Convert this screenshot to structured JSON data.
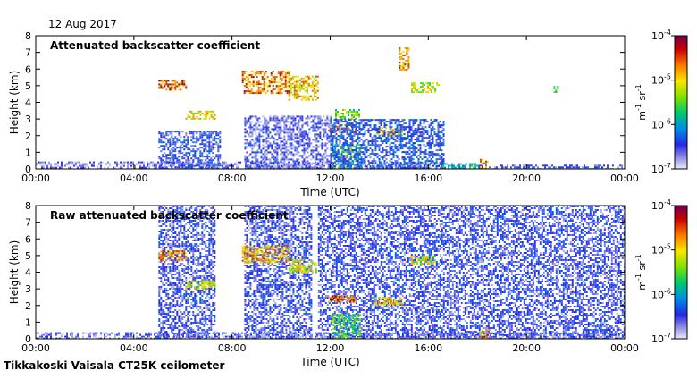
{
  "date": "12 Aug 2017",
  "footer": "Tikkakoski Vaisala CT25K ceilometer",
  "chart_data": [
    {
      "type": "heatmap",
      "title": "Attenuated backscatter coefficient",
      "xlabel": "Time (UTC)",
      "ylabel": "Height (km)",
      "xlim": [
        0,
        24
      ],
      "ylim": [
        0,
        8
      ],
      "x_ticks": [
        "00:00",
        "04:00",
        "08:00",
        "12:00",
        "16:00",
        "20:00",
        "00:00"
      ],
      "y_ticks": [
        "0",
        "1",
        "2",
        "3",
        "4",
        "5",
        "6",
        "7",
        "8"
      ],
      "colorbar": {
        "scale": "log",
        "unit_label": "m-1 sr-1",
        "unit_base_1": "m",
        "unit_exp_1": "-1",
        "unit_base_2": "sr",
        "unit_exp_2": "-1",
        "range": [
          1e-07,
          0.0001
        ],
        "tick_bases": [
          "10",
          "10",
          "10",
          "10"
        ],
        "tick_exps": [
          "-4",
          "-5",
          "-6",
          "-7"
        ],
        "tick_values": [
          0.0001,
          1e-05,
          1e-06,
          1e-07
        ]
      },
      "layers": [
        {
          "name": "surface-layer",
          "start_h": 0.0,
          "end_h": 16.6,
          "bottom_km": 0.0,
          "top_km": 0.45,
          "level": 0.15
        },
        {
          "name": "evening-surface-layer",
          "start_h": 18.1,
          "end_h": 24.0,
          "bottom_km": 0.0,
          "top_km": 0.25,
          "level": 0.22
        },
        {
          "name": "cloud-0500",
          "start_h": 5.0,
          "end_h": 6.1,
          "bottom_km": 4.75,
          "top_km": 5.35,
          "level": 0.88
        },
        {
          "name": "cloud-0600",
          "start_h": 6.1,
          "end_h": 7.3,
          "bottom_km": 3.0,
          "top_km": 3.5,
          "level": 0.72
        },
        {
          "name": "cloud-0830",
          "start_h": 8.4,
          "end_h": 10.3,
          "bottom_km": 4.6,
          "top_km": 5.9,
          "level": 0.85
        },
        {
          "name": "cloud-1030",
          "start_h": 10.3,
          "end_h": 11.5,
          "bottom_km": 4.2,
          "top_km": 5.6,
          "level": 0.78
        },
        {
          "name": "cloud-1200-low",
          "start_h": 11.9,
          "end_h": 13.0,
          "bottom_km": 2.2,
          "top_km": 2.6,
          "level": 0.9
        },
        {
          "name": "cloud-1300-mid",
          "start_h": 12.2,
          "end_h": 13.2,
          "bottom_km": 3.0,
          "top_km": 3.6,
          "level": 0.6
        },
        {
          "name": "cloud-1400-low",
          "start_h": 13.8,
          "end_h": 14.9,
          "bottom_km": 2.0,
          "top_km": 2.5,
          "level": 0.75
        },
        {
          "name": "cloud-1500-high",
          "start_h": 14.8,
          "end_h": 15.2,
          "bottom_km": 6.0,
          "top_km": 7.3,
          "level": 0.82
        },
        {
          "name": "cloud-1530",
          "start_h": 15.3,
          "end_h": 16.4,
          "bottom_km": 4.6,
          "top_km": 5.2,
          "level": 0.7
        },
        {
          "name": "cloud-2100",
          "start_h": 21.1,
          "end_h": 21.3,
          "bottom_km": 4.6,
          "top_km": 5.1,
          "level": 0.55
        },
        {
          "name": "rain-1230",
          "start_h": 12.1,
          "end_h": 13.2,
          "bottom_km": 0.0,
          "top_km": 1.5,
          "level": 0.55
        },
        {
          "name": "rain-1800",
          "start_h": 18.1,
          "end_h": 18.4,
          "bottom_km": 0.0,
          "top_km": 0.6,
          "level": 0.85
        },
        {
          "name": "drizzle-1630",
          "start_h": 16.5,
          "end_h": 18.1,
          "bottom_km": 0.0,
          "top_km": 0.35,
          "level": 0.45
        },
        {
          "name": "residual-0500",
          "start_h": 5.0,
          "end_h": 7.5,
          "bottom_km": 0.0,
          "top_km": 2.3,
          "level": 0.25
        },
        {
          "name": "residual-1100",
          "start_h": 8.5,
          "end_h": 12.0,
          "bottom_km": 0.0,
          "top_km": 3.2,
          "level": 0.2
        },
        {
          "name": "residual-1300",
          "start_h": 12.0,
          "end_h": 16.6,
          "bottom_km": 0.0,
          "top_km": 3.0,
          "level": 0.28
        }
      ]
    },
    {
      "type": "heatmap",
      "title": "Raw attenuated backscatter coefficient",
      "xlabel": "Time (UTC)",
      "ylabel": "Height (km)",
      "xlim": [
        0,
        24
      ],
      "ylim": [
        0,
        8
      ],
      "x_ticks": [
        "00:00",
        "04:00",
        "08:00",
        "12:00",
        "16:00",
        "20:00",
        "00:00"
      ],
      "y_ticks": [
        "0",
        "1",
        "2",
        "3",
        "4",
        "5",
        "6",
        "7",
        "8"
      ],
      "colorbar": {
        "scale": "log",
        "unit_label": "m-1 sr-1",
        "unit_base_1": "m",
        "unit_exp_1": "-1",
        "unit_base_2": "sr",
        "unit_exp_2": "-1",
        "range": [
          1e-07,
          0.0001
        ],
        "tick_bases": [
          "10",
          "10",
          "10",
          "10"
        ],
        "tick_exps": [
          "-4",
          "-5",
          "-6",
          "-7"
        ],
        "tick_values": [
          0.0001,
          1e-05,
          1e-06,
          1e-07
        ]
      },
      "layers": [
        {
          "name": "noise-field-0500",
          "start_h": 5.0,
          "end_h": 7.3,
          "bottom_km": 0.0,
          "top_km": 8.0,
          "level": 0.22
        },
        {
          "name": "noise-field-0800",
          "start_h": 8.5,
          "end_h": 11.2,
          "bottom_km": 0.0,
          "top_km": 8.0,
          "level": 0.22
        },
        {
          "name": "noise-field-1130",
          "start_h": 11.5,
          "end_h": 24.0,
          "bottom_km": 0.0,
          "top_km": 8.0,
          "level": 0.22
        },
        {
          "name": "surface-layer",
          "start_h": 0.0,
          "end_h": 24.0,
          "bottom_km": 0.0,
          "top_km": 0.4,
          "level": 0.18
        },
        {
          "name": "cloud-0500",
          "start_h": 5.0,
          "end_h": 6.1,
          "bottom_km": 4.7,
          "top_km": 5.3,
          "level": 0.85
        },
        {
          "name": "cloud-0600",
          "start_h": 6.1,
          "end_h": 7.3,
          "bottom_km": 3.0,
          "top_km": 3.5,
          "level": 0.7
        },
        {
          "name": "cloud-0830",
          "start_h": 8.4,
          "end_h": 10.3,
          "bottom_km": 4.6,
          "top_km": 5.6,
          "level": 0.8
        },
        {
          "name": "cloud-1030",
          "start_h": 10.3,
          "end_h": 11.4,
          "bottom_km": 4.0,
          "top_km": 4.8,
          "level": 0.7
        },
        {
          "name": "cloud-1200-low",
          "start_h": 11.9,
          "end_h": 13.0,
          "bottom_km": 2.2,
          "top_km": 2.6,
          "level": 0.9
        },
        {
          "name": "cloud-1400-low",
          "start_h": 13.8,
          "end_h": 14.9,
          "bottom_km": 2.0,
          "top_km": 2.5,
          "level": 0.75
        },
        {
          "name": "cloud-1530",
          "start_h": 15.3,
          "end_h": 16.3,
          "bottom_km": 4.5,
          "top_km": 5.0,
          "level": 0.68
        },
        {
          "name": "rain-1230",
          "start_h": 12.1,
          "end_h": 13.2,
          "bottom_km": 0.0,
          "top_km": 1.5,
          "level": 0.55
        },
        {
          "name": "rain-1800",
          "start_h": 18.1,
          "end_h": 18.4,
          "bottom_km": 0.0,
          "top_km": 0.6,
          "level": 0.85
        }
      ]
    }
  ]
}
